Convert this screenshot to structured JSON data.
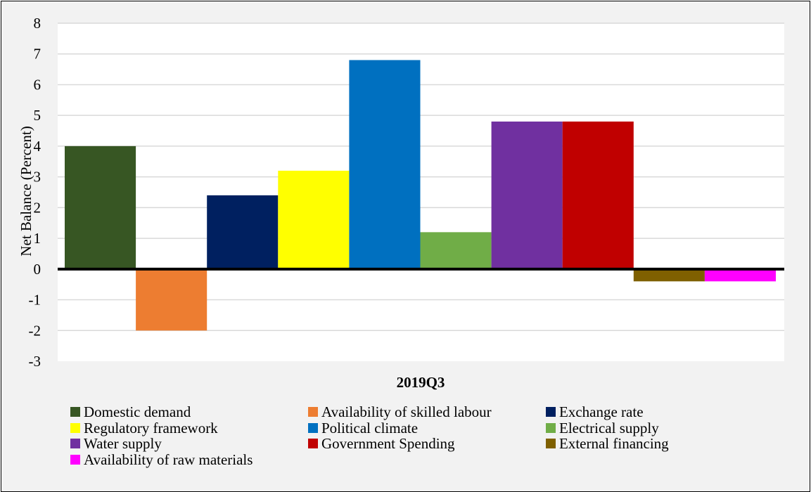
{
  "chart_data": {
    "type": "bar",
    "title": "",
    "xlabel": "2019Q3",
    "ylabel": "Net Balance (Percent)",
    "ylim": [
      -3,
      8
    ],
    "yticks": [
      -3,
      -2,
      -1,
      0,
      1,
      2,
      3,
      4,
      5,
      6,
      7,
      8
    ],
    "grid": true,
    "legend_position": "bottom",
    "categories": [
      "2019Q3"
    ],
    "series": [
      {
        "name": "Domestic demand",
        "values": [
          4.0
        ],
        "color": "#375623"
      },
      {
        "name": "Availability of skilled labour",
        "values": [
          -2.0
        ],
        "color": "#ed7d31"
      },
      {
        "name": "Exchange rate",
        "values": [
          2.4
        ],
        "color": "#002060"
      },
      {
        "name": "Regulatory framework",
        "values": [
          3.2
        ],
        "color": "#ffff00"
      },
      {
        "name": "Political climate",
        "values": [
          6.8
        ],
        "color": "#0070c0"
      },
      {
        "name": "Electrical supply",
        "values": [
          1.2
        ],
        "color": "#70ad47"
      },
      {
        "name": "Water supply",
        "values": [
          4.8
        ],
        "color": "#7030a0"
      },
      {
        "name": "Government Spending",
        "values": [
          4.8
        ],
        "color": "#c00000"
      },
      {
        "name": "External financing",
        "values": [
          -0.4
        ],
        "color": "#7f6000"
      },
      {
        "name": "Availability of raw materials",
        "values": [
          -0.4
        ],
        "color": "#ff00ff"
      }
    ]
  }
}
